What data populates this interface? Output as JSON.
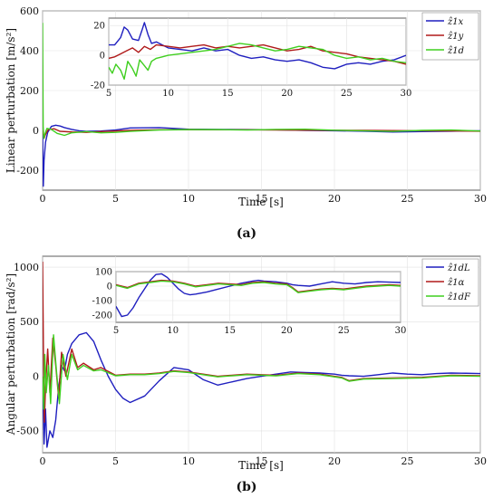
{
  "chart_data": [
    {
      "type": "line",
      "panel_label": "(a)",
      "xlabel": "Time [s]",
      "ylabel": "Linear perturbation [m/s²]",
      "xlim": [
        0,
        30
      ],
      "ylim": [
        -300,
        600
      ],
      "xticks": [
        0,
        5,
        10,
        15,
        20,
        25,
        30
      ],
      "yticks": [
        -200,
        0,
        200,
        400,
        600
      ],
      "grid": true,
      "series": [
        {
          "name": "ẑ1x",
          "color": "#1f1fbf",
          "x": [
            0.0,
            0.05,
            0.1,
            0.2,
            0.35,
            0.6,
            0.9,
            1.2,
            1.5,
            2.0,
            2.5,
            3.0,
            4.0,
            5.0,
            6.0,
            8.0,
            10.0,
            12.0,
            14.0,
            16.0,
            18.0,
            20.0,
            22.0,
            24.0,
            26.0,
            28.0,
            30.0
          ],
          "y": [
            0,
            -280,
            -150,
            -60,
            -10,
            20,
            26,
            22,
            14,
            5,
            -2,
            -5,
            -3,
            2,
            12,
            14,
            6,
            5,
            4,
            3,
            0,
            -2,
            -4,
            -8,
            -6,
            -4,
            -2
          ]
        },
        {
          "name": "ẑ1y",
          "color": "#b01a1a",
          "x": [
            0.0,
            0.1,
            0.2,
            0.4,
            0.8,
            1.2,
            2.0,
            3.0,
            4.0,
            6.0,
            8.0,
            10.0,
            14.0,
            18.0,
            22.0,
            26.0,
            30.0
          ],
          "y": [
            0,
            -40,
            -20,
            5,
            8,
            -5,
            -8,
            -10,
            -6,
            0,
            3,
            4,
            3,
            1,
            0,
            -2,
            -4
          ]
        },
        {
          "name": "ẑ1d",
          "color": "#3fcf1f",
          "x": [
            0.0,
            0.04,
            0.08,
            0.15,
            0.3,
            0.6,
            1.0,
            1.5,
            2.0,
            3.0,
            4.0,
            5.0,
            6.0,
            8.0,
            10.0,
            12.0,
            14.0,
            16.0,
            18.0,
            20.0,
            22.0,
            24.0,
            26.0,
            28.0,
            30.0
          ],
          "y": [
            540,
            20,
            -40,
            -20,
            10,
            5,
            -15,
            -25,
            -12,
            -6,
            -12,
            -10,
            -5,
            2,
            4,
            4,
            2,
            5,
            6,
            1,
            -2,
            -5,
            0,
            2,
            -3
          ]
        }
      ],
      "inset": {
        "xlim": [
          5,
          30
        ],
        "ylim": [
          -20,
          25
        ],
        "xticks": [
          5,
          10,
          15,
          20,
          25,
          30
        ],
        "yticks": [
          -20,
          0,
          20
        ],
        "series": [
          {
            "name": "ẑ1x",
            "color": "#1f1fbf",
            "x": [
              5.0,
              5.5,
              6.0,
              6.3,
              6.6,
              7.0,
              7.5,
              7.8,
              8.0,
              8.3,
              8.6,
              9.0,
              9.5,
              10.0,
              11.0,
              12.0,
              13.0,
              14.0,
              15.0,
              16.0,
              17.0,
              18.0,
              19.0,
              20.0,
              21.0,
              22.0,
              23.0,
              24.0,
              25.0,
              26.0,
              27.0,
              28.0,
              29.0,
              30.0
            ],
            "y": [
              7,
              7,
              12,
              19,
              17,
              11,
              10,
              17,
              22,
              14,
              8,
              9,
              7,
              5,
              4,
              3,
              5,
              3,
              4,
              0,
              -2,
              -1,
              -3,
              -4,
              -3,
              -5,
              -8,
              -9,
              -6,
              -5,
              -6,
              -4,
              -3,
              0
            ]
          },
          {
            "name": "ẑ1y",
            "color": "#b01a1a",
            "x": [
              5.0,
              5.5,
              6.0,
              6.5,
              7.0,
              7.5,
              8.0,
              8.5,
              9.0,
              10.0,
              11.0,
              12.0,
              13.0,
              14.0,
              15.0,
              16.0,
              17.0,
              18.0,
              19.0,
              20.0,
              21.0,
              22.0,
              23.0,
              24.0,
              25.0,
              26.0,
              27.0,
              28.0,
              29.0,
              30.0
            ],
            "y": [
              -2,
              -1,
              1,
              3,
              5,
              2,
              6,
              4,
              7,
              6,
              5,
              6,
              7,
              5,
              6,
              5,
              6,
              7,
              5,
              3,
              4,
              6,
              3,
              2,
              1,
              -1,
              -2,
              -3,
              -4,
              -6
            ]
          },
          {
            "name": "ẑ1d",
            "color": "#3fcf1f",
            "x": [
              5.0,
              5.3,
              5.6,
              6.0,
              6.3,
              6.6,
              7.0,
              7.3,
              7.6,
              8.0,
              8.3,
              8.6,
              9.0,
              9.5,
              10.0,
              11.0,
              12.0,
              13.0,
              14.0,
              15.0,
              16.0,
              17.0,
              18.0,
              19.0,
              20.0,
              21.0,
              22.0,
              23.0,
              24.0,
              25.0,
              26.0,
              27.0,
              28.0,
              29.0,
              30.0
            ],
            "y": [
              -8,
              -12,
              -6,
              -10,
              -16,
              -4,
              -9,
              -14,
              -3,
              -7,
              -10,
              -4,
              -2,
              -1,
              0,
              1,
              2,
              3,
              4,
              6,
              8,
              7,
              5,
              3,
              4,
              6,
              5,
              4,
              0,
              -2,
              -1,
              -3,
              -2,
              -4,
              -5
            ]
          }
        ]
      }
    },
    {
      "type": "line",
      "panel_label": "(b)",
      "xlabel": "Time [s]",
      "ylabel": "Angular perturbation [rad/s²]",
      "xlim": [
        0,
        30
      ],
      "ylim": [
        -700,
        1100
      ],
      "xticks": [
        0,
        5,
        10,
        15,
        20,
        25,
        30
      ],
      "yticks": [
        -500,
        0,
        500,
        1000
      ],
      "grid": true,
      "series": [
        {
          "name": "ẑ1dL",
          "color": "#1f1fbf",
          "x": [
            0.0,
            0.1,
            0.2,
            0.3,
            0.5,
            0.7,
            0.9,
            1.1,
            1.3,
            1.5,
            1.7,
            2.0,
            2.5,
            3.0,
            3.5,
            4.0,
            4.5,
            5.0,
            5.5,
            6.0,
            7.0,
            8.0,
            9.0,
            10.0,
            11.0,
            12.0,
            13.0,
            14.0,
            15.0,
            16.0,
            17.0,
            18.0,
            19.0,
            20.0,
            20.5,
            21.0,
            22.0,
            23.0,
            24.0,
            25.0,
            26.0,
            27.0,
            28.0,
            29.0,
            30.0
          ],
          "y": [
            0,
            -620,
            -300,
            -650,
            -500,
            -560,
            -400,
            -100,
            100,
            50,
            200,
            300,
            380,
            400,
            320,
            150,
            0,
            -120,
            -200,
            -240,
            -180,
            -40,
            80,
            60,
            -30,
            -80,
            -50,
            -20,
            0,
            20,
            40,
            35,
            30,
            20,
            10,
            5,
            0,
            15,
            30,
            20,
            15,
            25,
            30,
            28,
            25
          ]
        },
        {
          "name": "ẑ1α",
          "color": "#b01a1a",
          "x": [
            0.0,
            0.06,
            0.12,
            0.2,
            0.35,
            0.5,
            0.7,
            0.9,
            1.1,
            1.3,
            1.6,
            2.0,
            2.4,
            2.8,
            3.5,
            4.0,
            5.0,
            6.0,
            7.0,
            8.0,
            9.0,
            10.0,
            12.0,
            14.0,
            16.0,
            17.5,
            19.0,
            20.5,
            21.0,
            22.0,
            24.0,
            26.0,
            28.0,
            30.0
          ],
          "y": [
            1050,
            200,
            -420,
            -100,
            250,
            -150,
            350,
            100,
            -200,
            220,
            0,
            250,
            80,
            120,
            60,
            80,
            10,
            20,
            20,
            30,
            50,
            40,
            0,
            20,
            10,
            30,
            20,
            -10,
            -40,
            -20,
            -15,
            -10,
            10,
            5
          ]
        },
        {
          "name": "ẑ1dF",
          "color": "#3fcf1f",
          "x": [
            0.0,
            0.08,
            0.15,
            0.25,
            0.4,
            0.55,
            0.75,
            0.95,
            1.15,
            1.4,
            1.7,
            2.0,
            2.4,
            2.8,
            3.5,
            4.0,
            5.0,
            6.0,
            7.0,
            8.0,
            9.0,
            10.0,
            12.0,
            14.0,
            16.0,
            17.5,
            19.0,
            20.5,
            21.0,
            22.0,
            24.0,
            26.0,
            28.0,
            30.0
          ],
          "y": [
            0,
            -300,
            200,
            -150,
            100,
            -250,
            380,
            50,
            -250,
            200,
            -30,
            200,
            60,
            100,
            50,
            60,
            5,
            15,
            15,
            25,
            45,
            35,
            -5,
            15,
            5,
            25,
            15,
            -15,
            -45,
            -25,
            -20,
            -15,
            5,
            0
          ]
        }
      ],
      "inset": {
        "xlim": [
          5,
          30
        ],
        "ylim": [
          -250,
          100
        ],
        "xticks": [
          5,
          10,
          15,
          20,
          25,
          30
        ],
        "yticks": [
          -200,
          -100,
          0,
          100
        ],
        "series": [
          {
            "name": "ẑ1dL",
            "color": "#1f1fbf",
            "x": [
              5.0,
              5.5,
              6.0,
              6.5,
              7.0,
              7.5,
              8.0,
              8.5,
              9.0,
              9.5,
              10.0,
              10.5,
              11.0,
              11.5,
              12.0,
              13.0,
              14.0,
              15.0,
              16.0,
              17.0,
              17.5,
              18.0,
              19.0,
              20.0,
              20.5,
              21.0,
              22.0,
              23.0,
              24.0,
              25.0,
              26.0,
              27.0,
              28.0,
              29.0,
              30.0
            ],
            "y": [
              -140,
              -210,
              -200,
              -150,
              -80,
              -20,
              40,
              80,
              85,
              60,
              20,
              -20,
              -50,
              -60,
              -55,
              -40,
              -20,
              0,
              20,
              35,
              40,
              35,
              30,
              20,
              10,
              5,
              0,
              15,
              30,
              20,
              15,
              25,
              30,
              28,
              25
            ]
          },
          {
            "name": "ẑ1α",
            "color": "#b01a1a",
            "x": [
              5.0,
              6.0,
              7.0,
              8.0,
              9.0,
              10.0,
              11.0,
              12.0,
              13.0,
              14.0,
              15.0,
              16.0,
              17.0,
              18.0,
              19.0,
              20.0,
              20.5,
              21.0,
              22.0,
              23.0,
              24.0,
              25.0,
              26.0,
              27.0,
              28.0,
              29.0,
              30.0
            ],
            "y": [
              10,
              -10,
              20,
              30,
              40,
              35,
              20,
              0,
              10,
              20,
              15,
              10,
              25,
              30,
              20,
              15,
              -10,
              -40,
              -30,
              -20,
              -15,
              -20,
              -10,
              0,
              5,
              10,
              5
            ]
          },
          {
            "name": "ẑ1dF",
            "color": "#3fcf1f",
            "x": [
              5.0,
              6.0,
              7.0,
              8.0,
              9.0,
              10.0,
              11.0,
              12.0,
              13.0,
              14.0,
              15.0,
              16.0,
              17.0,
              18.0,
              19.0,
              20.0,
              20.5,
              21.0,
              22.0,
              23.0,
              24.0,
              25.0,
              26.0,
              27.0,
              28.0,
              29.0,
              30.0
            ],
            "y": [
              5,
              -15,
              15,
              25,
              35,
              30,
              15,
              -5,
              5,
              15,
              10,
              5,
              20,
              25,
              15,
              10,
              -15,
              -45,
              -35,
              -25,
              -20,
              -25,
              -15,
              -5,
              0,
              5,
              0
            ]
          }
        ]
      }
    }
  ]
}
